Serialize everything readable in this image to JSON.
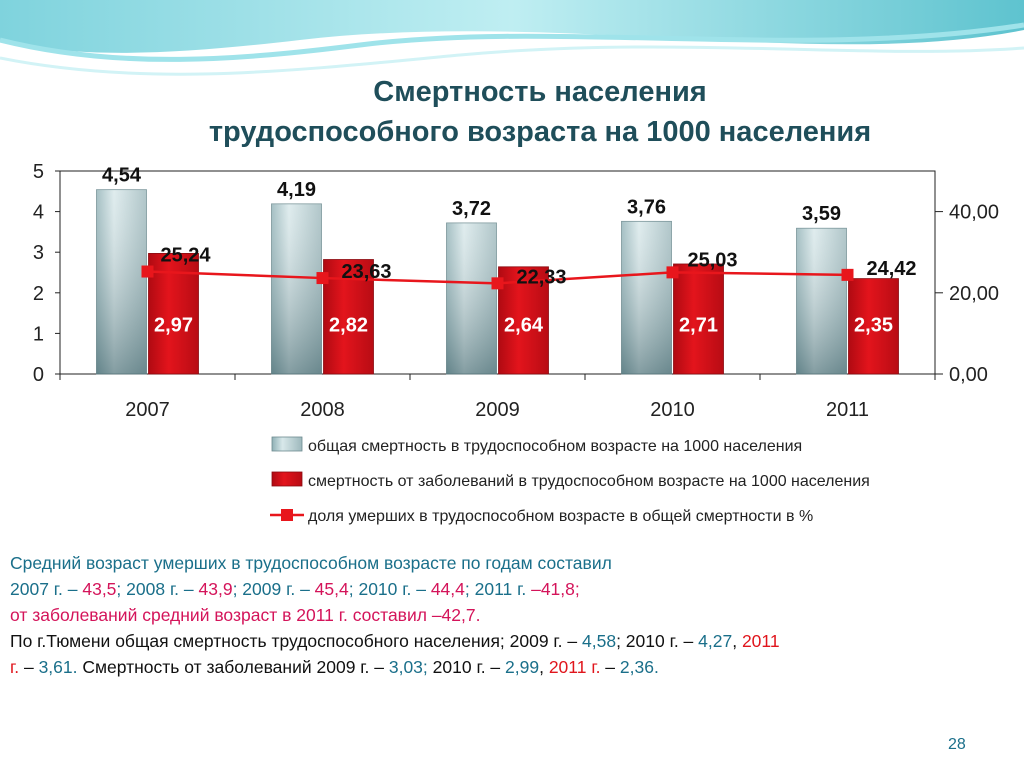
{
  "slide": {
    "title_line1": "Смертность населения",
    "title_line2": "трудоспособного возраста на 1000 населения",
    "page_number": "28"
  },
  "chart_data": {
    "type": "bar",
    "categories": [
      "2007",
      "2008",
      "2009",
      "2010",
      "2011"
    ],
    "series": [
      {
        "name": "общая смертность в трудоспособном возрасте на 1000 населения",
        "axis": "left",
        "kind": "bar",
        "color": "#a9c4c8",
        "values": [
          4.54,
          4.19,
          3.72,
          3.76,
          3.59
        ],
        "labels": [
          "4,54",
          "4,19",
          "3,72",
          "3,76",
          "3,59"
        ]
      },
      {
        "name": "смертность от заболеваний в трудоспособном возрасте на 1000 населения",
        "axis": "left",
        "kind": "bar",
        "color": "#d0101a",
        "values": [
          2.97,
          2.82,
          2.64,
          2.71,
          2.35
        ],
        "labels": [
          "2,97",
          "2,82",
          "2,64",
          "2,71",
          "2,35"
        ]
      },
      {
        "name": "доля умерших в трудоспособном возрасте в общей смертности в %",
        "axis": "right",
        "kind": "line",
        "color": "#e8161c",
        "values": [
          25.24,
          23.63,
          22.33,
          25.03,
          24.42
        ],
        "labels": [
          "25,24",
          "23,63",
          "22,33",
          "25,03",
          "24,42"
        ]
      }
    ],
    "left_axis": {
      "ylim": [
        0,
        5
      ],
      "ticks": [
        "0",
        "1",
        "2",
        "3",
        "4",
        "5"
      ]
    },
    "right_axis": {
      "ylim": [
        0,
        50
      ],
      "tick_values": [
        0,
        20,
        40
      ],
      "ticks": [
        "0,00",
        "20,00",
        "40,00"
      ]
    },
    "legend_position": "bottom",
    "grid": false
  },
  "footer": {
    "line1": "Средний возраст умерших в трудоспособном возрасте по годам составил",
    "line2": [
      {
        "text": "2007 г. – ",
        "color": "teal"
      },
      {
        "text": "43,5",
        "color": "pink"
      },
      {
        "text": "; 2008 г. – ",
        "color": "teal"
      },
      {
        "text": "43,9",
        "color": "pink"
      },
      {
        "text": "; 2009 г. – ",
        "color": "teal"
      },
      {
        "text": "45,4",
        "color": "pink"
      },
      {
        "text": "; 2010 г. –  ",
        "color": "teal"
      },
      {
        "text": "44,4",
        "color": "pink"
      },
      {
        "text": "; 2011 г. ",
        "color": "teal"
      },
      {
        "text": "–41,8;",
        "color": "pink"
      }
    ],
    "line3": "от заболеваний средний возраст в 2011 г. составил –42,7.",
    "line4": [
      {
        "text": "По г.Тюмени общая смертность трудоспособного населения; 2009 г. – ",
        "color": "black"
      },
      {
        "text": "4,58",
        "color": "teal"
      },
      {
        "text": "; 2010 г. – ",
        "color": "black"
      },
      {
        "text": "4,27",
        "color": "teal"
      },
      {
        "text": ", ",
        "color": "black"
      },
      {
        "text": "2011",
        "color": "red"
      }
    ],
    "line5": [
      {
        "text": "г.",
        "color": "red"
      },
      {
        "text": " – ",
        "color": "black"
      },
      {
        "text": "3,61.",
        "color": "teal"
      },
      {
        "text": "    Смертность от заболеваний 2009 г. – ",
        "color": "black"
      },
      {
        "text": "3,03;",
        "color": "teal"
      },
      {
        "text": " 2010 г. – ",
        "color": "black"
      },
      {
        "text": "2,99",
        "color": "teal"
      },
      {
        "text": ", ",
        "color": "black"
      },
      {
        "text": "2011 г.",
        "color": "red"
      },
      {
        "text": " – ",
        "color": "black"
      },
      {
        "text": "2,36.",
        "color": "teal"
      }
    ]
  }
}
